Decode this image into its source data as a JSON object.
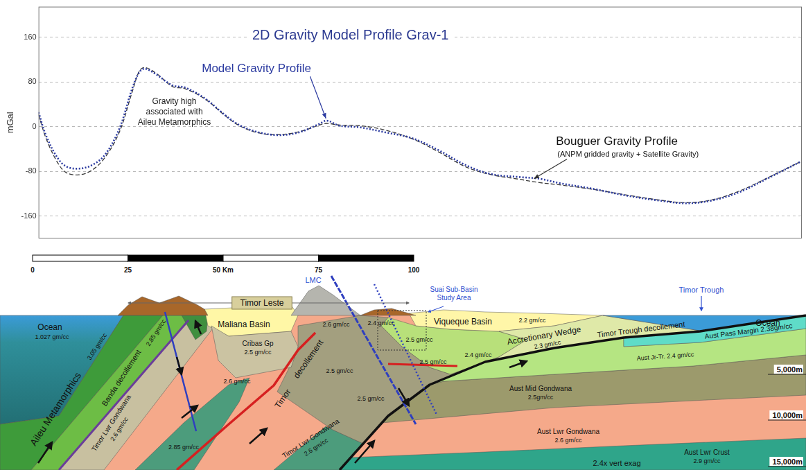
{
  "chart_data": {
    "type": "line",
    "title": "2D Gravity Model Profile Grav-1",
    "y_label": "mGal",
    "x": [
      -5,
      -3,
      0,
      2.5,
      6,
      9.5,
      13,
      17,
      20.5,
      22.5,
      24,
      27,
      31.5,
      35,
      40.5,
      46,
      50,
      55,
      60.5,
      66,
      71.5,
      73.5,
      77,
      82.5,
      89.5,
      97,
      104,
      111.5,
      118.5,
      126,
      131.5,
      137,
      146,
      155,
      164,
      171.5,
      178.5,
      186,
      193.5,
      202.5
    ],
    "series": [
      {
        "name": "Model Gravity Profile",
        "color": "#2b3aa0",
        "line_style": "dotted",
        "values": [
          26,
          -15,
          -54,
          -71,
          -75,
          -69,
          -51,
          -4,
          68,
          98,
          104,
          94,
          74,
          70,
          50,
          20,
          2,
          -10,
          -15,
          -10,
          5,
          11,
          2,
          -1,
          -10,
          -21,
          -42,
          -69,
          -85,
          -90,
          -93,
          -101,
          -111,
          -123,
          -132,
          -137,
          -132,
          -117,
          -93,
          -63
        ]
      },
      {
        "name": "Bouguer Gravity Profile",
        "color": "#3a3a3a",
        "line_style": "dashed",
        "values": [
          22,
          -20,
          -62,
          -82,
          -86,
          -78,
          -56,
          -10,
          62,
          100,
          106,
          96,
          72,
          68,
          49,
          19,
          1,
          -11,
          -14,
          -9,
          3,
          6,
          3,
          2,
          -6,
          -22,
          -45,
          -72,
          -86,
          -94,
          -100,
          -104,
          -112,
          -122,
          -131,
          -136,
          -131,
          -115,
          -92,
          -63
        ]
      }
    ],
    "xlim": [
      -5,
      203
    ],
    "ylim": [
      -200,
      215
    ],
    "yticks": [
      -160,
      -80,
      0,
      80,
      160
    ],
    "grid": true,
    "tick_labels": "y",
    "annotations": [
      "Gravity high associated with Aileu Metamorphics",
      "(ANPM gridded gravity + Satellite Gravity)"
    ]
  },
  "section": {
    "scale_bar": [
      {
        "value": 0,
        "label": "0"
      },
      {
        "value": 25,
        "label": "25"
      },
      {
        "value": 50,
        "label": "50 Km"
      },
      {
        "value": 75,
        "label": "75"
      },
      {
        "value": 100,
        "label": "100"
      }
    ],
    "depths": [
      "5,000m",
      "10,000m",
      "15,000m"
    ],
    "labels": [
      "Ocean",
      "1.027 gm/cc",
      "Aileu Metamorphics",
      "3.05 gm/cc",
      "2.85 gm/cc",
      "Banda decollement",
      "Timor Lwr Gondwana",
      "2.6 gm/cc",
      "2.85 gm/cc",
      "Timor Leste",
      "Maliana Basin",
      "Cribas Gp",
      "2.5 gm/cc",
      "2.6 gm/cc",
      "2.6 gm/cc",
      "Timor",
      "decollement",
      "2.5 gm/cc",
      "Timor Lwr Gondwana",
      "2.6 gm/cc",
      "LMC",
      "2.4 gm/cc",
      "2.5 gm/cc",
      "2.5 gm/cc",
      "2.5 gm/cc",
      "Viqueque Basin",
      "2.2 gm/cc",
      "2.4 gm/cc",
      "Accretionary Wedge",
      "2.3 gm/cc",
      "Timor Trough decollement",
      "Aust Pass Margin 2.38gm/cc",
      "Aust Jr-Tr. 2.4 gm/cc",
      "Aust Mid Gondwana",
      "2.5gm/cc",
      "Aust Lwr Gondwana",
      "2.6 gm/cc",
      "Aust Lwr Crust",
      "2.9 gm/cc",
      "2.4x vert exag",
      "Suai Sub-Basin Study Area",
      "Timor Trough",
      "Ocean"
    ]
  }
}
